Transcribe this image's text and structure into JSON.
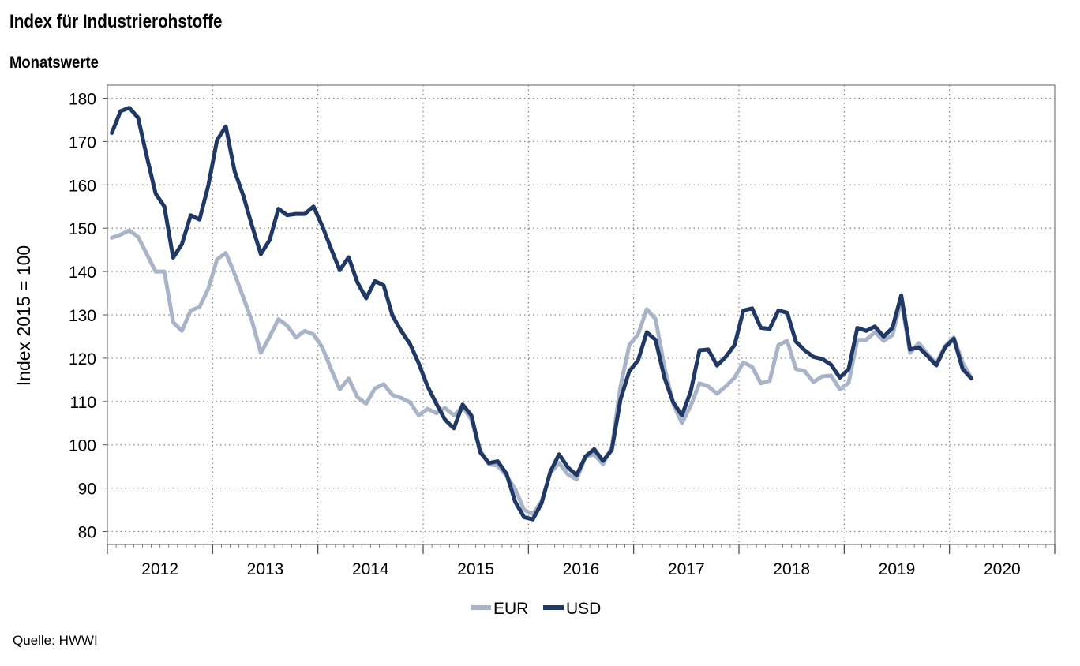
{
  "header": {
    "title": "Index für Industrierohstoffe",
    "subtitle": "Monatswerte"
  },
  "footer": {
    "source": "Quelle: HWWI"
  },
  "chart_data": {
    "type": "line",
    "title": "Index für Industrierohstoffe",
    "subtitle": "Monatswerte",
    "xlabel": "",
    "ylabel": "Index 2015 = 100",
    "ylim": [
      77,
      183
    ],
    "yticks": [
      80,
      90,
      100,
      110,
      120,
      130,
      140,
      150,
      160,
      170,
      180
    ],
    "xticks": [
      "2012",
      "2013",
      "2014",
      "2015",
      "2016",
      "2017",
      "2018",
      "2019",
      "2020"
    ],
    "start": "2012-01",
    "frequency": "monthly",
    "grid": true,
    "legend_position": "bottom-center",
    "series": [
      {
        "name": "EUR",
        "color": "#a9b4c8",
        "values": [
          147.8,
          148.5,
          149.5,
          148.0,
          144.0,
          140.0,
          140.0,
          128.3,
          126.3,
          131.0,
          131.8,
          136.0,
          142.8,
          144.3,
          139.5,
          134.0,
          128.5,
          121.2,
          125.0,
          129.0,
          127.5,
          124.8,
          126.3,
          125.5,
          122.5,
          117.5,
          112.8,
          115.3,
          111.0,
          109.5,
          113.0,
          114.0,
          111.5,
          110.8,
          109.8,
          106.8,
          108.3,
          107.3,
          108.5,
          106.8,
          108.8,
          105.8,
          98.8,
          95.5,
          95.2,
          92.8,
          89.8,
          85.0,
          84.0,
          87.0,
          93.5,
          95.8,
          93.2,
          92.0,
          97.2,
          97.8,
          95.5,
          99.5,
          113.5,
          123.0,
          125.5,
          131.3,
          129.0,
          118.0,
          109.5,
          105.0,
          109.0,
          114.2,
          113.5,
          111.8,
          113.5,
          115.5,
          119.0,
          118.0,
          114.2,
          114.8,
          123.0,
          124.0,
          117.5,
          117.0,
          114.5,
          115.8,
          116.0,
          112.8,
          114.3,
          124.2,
          124.2,
          126.0,
          124.0,
          125.3,
          133.3,
          121.2,
          123.5,
          121.0,
          118.8,
          122.8,
          124.8,
          119.0,
          115.5
        ]
      },
      {
        "name": "USD",
        "color": "#1f3864",
        "values": [
          172.0,
          177.0,
          177.8,
          175.5,
          166.5,
          158.0,
          155.0,
          143.2,
          146.3,
          153.0,
          152.0,
          159.8,
          170.3,
          173.5,
          163.2,
          157.5,
          150.5,
          144.0,
          147.3,
          154.5,
          153.0,
          153.3,
          153.3,
          155.0,
          150.5,
          145.3,
          140.3,
          143.3,
          137.5,
          133.8,
          137.8,
          136.8,
          129.8,
          126.3,
          123.3,
          118.8,
          113.5,
          109.5,
          105.8,
          103.8,
          109.3,
          106.8,
          98.3,
          95.8,
          96.2,
          93.3,
          86.8,
          83.3,
          82.8,
          86.5,
          93.8,
          97.8,
          94.8,
          93.0,
          97.3,
          99.0,
          96.3,
          98.8,
          110.5,
          117.0,
          119.5,
          126.0,
          124.2,
          115.5,
          109.8,
          106.8,
          112.3,
          121.8,
          122.0,
          118.3,
          120.3,
          123.0,
          131.0,
          131.5,
          127.0,
          126.8,
          131.0,
          130.5,
          123.8,
          121.8,
          120.3,
          119.8,
          118.5,
          115.5,
          117.5,
          127.0,
          126.3,
          127.3,
          125.0,
          127.0,
          134.5,
          122.0,
          122.5,
          120.5,
          118.3,
          122.5,
          124.5,
          117.5,
          115.3
        ]
      }
    ]
  }
}
